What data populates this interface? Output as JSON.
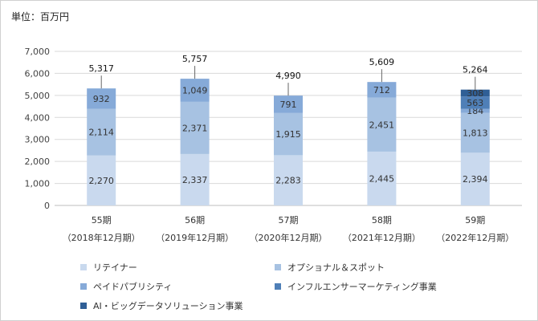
{
  "unit_label": "単位：百万円",
  "colors": {
    "retainer": "#c9d9ee",
    "options_spot": "#a7c2e2",
    "paid_publicity": "#86aad8",
    "influencer": "#4f7fb7",
    "ai_bigdata": "#2f5f96"
  },
  "chart_data": {
    "type": "bar",
    "stacked": true,
    "ylim": [
      0,
      7000
    ],
    "yticks": [
      "0",
      "1,000",
      "2,000",
      "3,000",
      "4,000",
      "5,000",
      "6,000",
      "7,000"
    ],
    "grid": true,
    "legend_placement": "bottom",
    "categories": [
      {
        "line1": "55期",
        "line2": "（2018年12月期）"
      },
      {
        "line1": "56期",
        "line2": "（2019年12月期）"
      },
      {
        "line1": "57期",
        "line2": "（2020年12月期）"
      },
      {
        "line1": "58期",
        "line2": "（2021年12月期）"
      },
      {
        "line1": "59期",
        "line2": "（2022年12月期）"
      }
    ],
    "series": [
      {
        "name": "リテイナー",
        "color_key": "retainer",
        "values": [
          2270,
          2337,
          2283,
          2445,
          2394
        ],
        "labels": [
          "2,270",
          "2,337",
          "2,283",
          "2,445",
          "2,394"
        ]
      },
      {
        "name": "オプショナル＆スポット",
        "color_key": "options_spot",
        "values": [
          2114,
          2371,
          1915,
          2451,
          1813
        ],
        "labels": [
          "2,114",
          "2,371",
          "1,915",
          "2,451",
          "1,813"
        ]
      },
      {
        "name": "ペイドパブリシティ",
        "color_key": "paid_publicity",
        "values": [
          932,
          1049,
          791,
          712,
          184
        ],
        "labels": [
          "932",
          "1,049",
          "791",
          "712",
          "184"
        ]
      },
      {
        "name": "インフルエンサーマーケティング事業",
        "color_key": "influencer",
        "values": [
          0,
          0,
          0,
          0,
          563
        ],
        "labels": [
          "",
          "",
          "",
          "",
          "563"
        ]
      },
      {
        "name": "AI・ビッグデータソリューション事業",
        "color_key": "ai_bigdata",
        "values": [
          0,
          0,
          0,
          0,
          308
        ],
        "labels": [
          "",
          "",
          "",
          "",
          "308"
        ]
      }
    ],
    "totals": [
      "5,317",
      "5,757",
      "4,990",
      "5,609",
      "5,264"
    ]
  }
}
